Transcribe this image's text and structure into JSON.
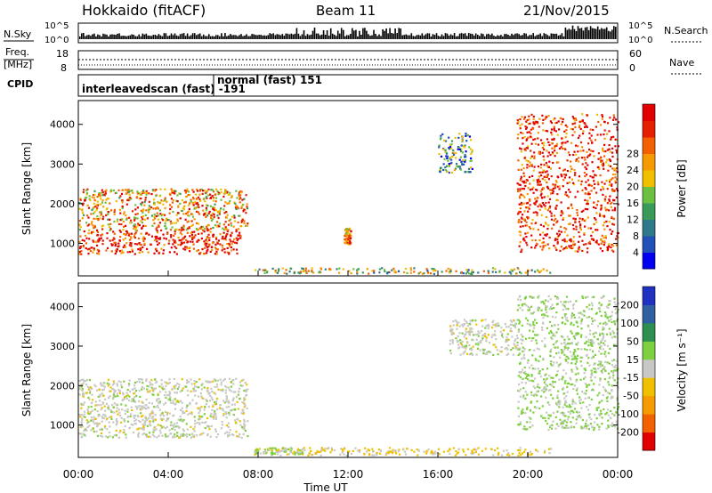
{
  "header": {
    "station": "Hokkaido (fitACF)",
    "beam": "Beam 11",
    "date": "21/Nov/2015"
  },
  "strip": {
    "nsky_label": "N.Sky",
    "nsearch_label": "N.Search",
    "freq_label_1": "Freq.",
    "freq_label_2": "[MHz]",
    "nave_label": "Nave",
    "cpid_label": "CPID",
    "nsky_ticks": [
      "10^5",
      "10^0"
    ],
    "nsearch_ticks": [
      "10^5",
      "10^0"
    ],
    "freq_ticks": [
      "18",
      "8"
    ],
    "nave_ticks": [
      "60",
      "0"
    ],
    "cpid_modes": [
      {
        "text": "interleavedscan (fast) -191",
        "start_hour": 0,
        "end_hour": 6.0
      },
      {
        "text": "normal (fast) 151",
        "start_hour": 6.0,
        "end_hour": 24.0
      }
    ]
  },
  "colors": {
    "power_scale": [
      "#0000ee",
      "#2050b8",
      "#2f7a8a",
      "#3a9a5a",
      "#6cc040",
      "#f0c000",
      "#f59a00",
      "#f26000",
      "#e42000",
      "#e00000"
    ],
    "velocity_scale": [
      "#e00000",
      "#f26000",
      "#f59a00",
      "#f0c000",
      "#c8c8c4",
      "#7ed040",
      "#2f8f50",
      "#3060a0",
      "#2030c0"
    ]
  },
  "chart_data": [
    {
      "type": "heatmap",
      "title": "",
      "xlabel": "",
      "ylabel": "Slant Range [km]",
      "x_unit": "hour UT",
      "xlim": [
        0,
        24
      ],
      "ylim": [
        180,
        4600
      ],
      "y_ticks": [
        "1000",
        "2000",
        "3000",
        "4000"
      ],
      "colorbar": {
        "label": "Power [dB]",
        "ticks": [
          "4",
          "8",
          "12",
          "16",
          "20",
          "24",
          "28"
        ],
        "range": [
          0,
          30
        ]
      },
      "regions": [
        {
          "name": "early-night E/F echoes",
          "x": [
            0,
            7.2
          ],
          "y": [
            750,
            1350
          ],
          "value": 27
        },
        {
          "name": "early-night high-range echoes",
          "x": [
            0,
            7.5
          ],
          "y": [
            1350,
            2400
          ],
          "value": 20
        },
        {
          "name": "near-range ground band",
          "x": [
            7.8,
            21.0
          ],
          "y": [
            250,
            400
          ],
          "value": 14
        },
        {
          "name": "patch 12:30",
          "x": [
            11.8,
            12.1
          ],
          "y": [
            1000,
            1400
          ],
          "value": 22
        },
        {
          "name": "afternoon patch",
          "x": [
            16.0,
            17.5
          ],
          "y": [
            2800,
            3800
          ],
          "value": 10
        },
        {
          "name": "dusk descending echoes",
          "x": [
            19.5,
            24.0
          ],
          "y": [
            800,
            4300
          ],
          "value": 26
        }
      ]
    },
    {
      "type": "heatmap",
      "title": "",
      "xlabel": "Time UT",
      "ylabel": "Slant Range [km]",
      "x_unit": "hour UT",
      "xlim": [
        0,
        24
      ],
      "ylim": [
        180,
        4600
      ],
      "x_ticks": [
        "00:00",
        "04:00",
        "08:00",
        "12:00",
        "16:00",
        "20:00",
        "00:00"
      ],
      "y_ticks": [
        "1000",
        "2000",
        "3000",
        "4000"
      ],
      "colorbar": {
        "label": "Velocity [m s⁻¹]",
        "ticks": [
          "200",
          "100",
          "50",
          "15",
          "-15",
          "-50",
          "-100",
          "-200"
        ],
        "range": [
          -250,
          250
        ]
      },
      "regions": [
        {
          "name": "early-night low-velocity echoes",
          "x": [
            0,
            7.5
          ],
          "y": [
            700,
            2200
          ],
          "value": 0
        },
        {
          "name": "near-range band",
          "x": [
            7.8,
            21.0
          ],
          "y": [
            250,
            450
          ],
          "value": -40
        },
        {
          "name": "near-range band early green",
          "x": [
            7.8,
            10.0
          ],
          "y": [
            280,
            450
          ],
          "value": 30
        },
        {
          "name": "afternoon grey patch",
          "x": [
            16.5,
            19.5
          ],
          "y": [
            2800,
            3700
          ],
          "value": 0
        },
        {
          "name": "dusk descending echoes",
          "x": [
            19.5,
            24.0
          ],
          "y": [
            900,
            4300
          ],
          "value": 35
        }
      ]
    }
  ]
}
